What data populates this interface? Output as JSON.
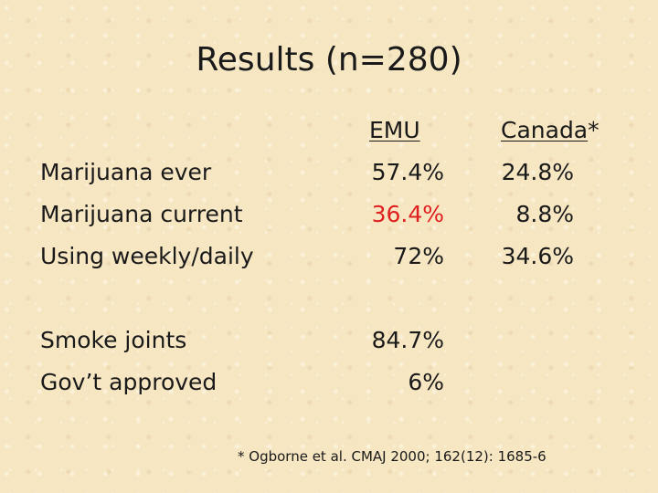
{
  "title": "Results (n=280)",
  "headers": {
    "emu": "EMU",
    "canada": "Canada",
    "canada_marker": "*"
  },
  "rows": [
    {
      "label": "Marijuana ever",
      "emu": "57.4%",
      "canada": "24.8%"
    },
    {
      "label": "Marijuana current",
      "emu": "36.4%",
      "canada": "8.8%"
    },
    {
      "label": "Using weekly/daily",
      "emu": "72%",
      "canada": "34.6%"
    },
    {
      "label": "Smoke joints",
      "emu": "84.7%"
    },
    {
      "label": "Gov’t approved",
      "emu": "6%"
    }
  ],
  "highlight_color": "#e02020",
  "footnote": "* Ogborne et al. CMAJ 2000; 162(12): 1685-6"
}
